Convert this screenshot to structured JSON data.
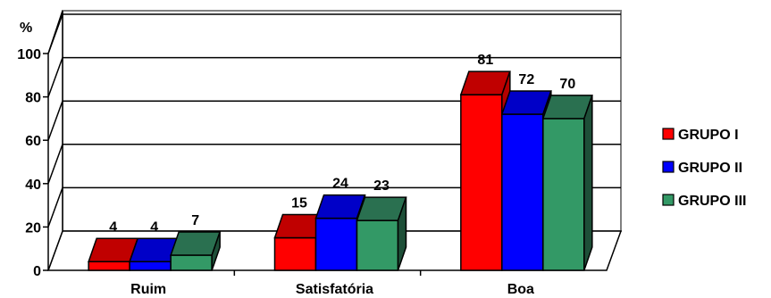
{
  "chart_data": {
    "type": "bar",
    "style": "3d-clustered-column",
    "y_unit_label": "%",
    "categories": [
      "Ruim",
      "Satisfatória",
      "Boa"
    ],
    "series": [
      {
        "name": "GRUPO I",
        "values": [
          4,
          15,
          81
        ],
        "color": "#ff0000",
        "top_color": "#c00000",
        "side_color": "#b40000"
      },
      {
        "name": "GRUPO II",
        "values": [
          4,
          24,
          72
        ],
        "color": "#0000ff",
        "top_color": "#0000c8",
        "side_color": "#000096"
      },
      {
        "name": "GRUPO III",
        "values": [
          7,
          23,
          70
        ],
        "color": "#339966",
        "top_color": "#2a7050",
        "side_color": "#1e4f38"
      }
    ],
    "yticks": [
      0,
      20,
      40,
      60,
      80,
      100
    ],
    "ylim": [
      0,
      100
    ],
    "grid": true,
    "legend_position": "right"
  }
}
